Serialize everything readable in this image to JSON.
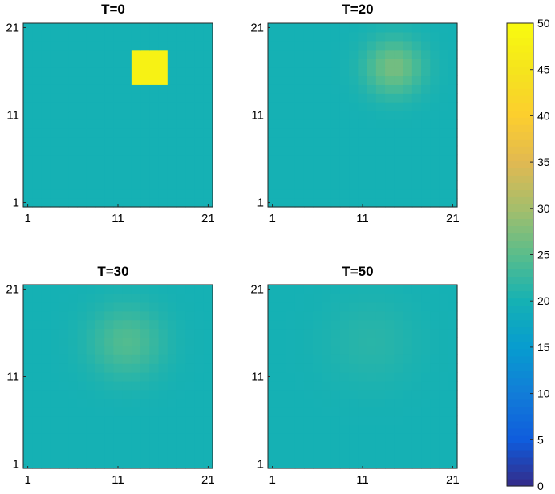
{
  "chart_data": [
    {
      "type": "heatmap",
      "title": "T=0",
      "x_ticks": [
        "1",
        "11",
        "21"
      ],
      "y_ticks": [
        "1",
        "11",
        "21"
      ],
      "xlim": [
        1,
        21
      ],
      "ylim": [
        1,
        21
      ],
      "background_value": 20,
      "hotspot": {
        "x_range": [
          13,
          16
        ],
        "y_range": [
          15,
          18
        ],
        "peak_value": 48,
        "profile": "flat"
      }
    },
    {
      "type": "heatmap",
      "title": "T=20",
      "x_ticks": [
        "1",
        "11",
        "21"
      ],
      "y_ticks": [
        "1",
        "11",
        "21"
      ],
      "xlim": [
        1,
        21
      ],
      "ylim": [
        1,
        21
      ],
      "background_value": 20,
      "hotspot": {
        "center": [
          14.5,
          16.5
        ],
        "peak_value": 27,
        "sigma": 2.2,
        "profile": "gaussian"
      }
    },
    {
      "type": "heatmap",
      "title": "T=30",
      "x_ticks": [
        "1",
        "11",
        "21"
      ],
      "y_ticks": [
        "1",
        "11",
        "21"
      ],
      "xlim": [
        1,
        21
      ],
      "ylim": [
        1,
        21
      ],
      "background_value": 20,
      "hotspot": {
        "center": [
          12,
          15
        ],
        "peak_value": 24.5,
        "sigma": 2.8,
        "profile": "gaussian"
      }
    },
    {
      "type": "heatmap",
      "title": "T=50",
      "x_ticks": [
        "1",
        "11",
        "21"
      ],
      "y_ticks": [
        "1",
        "11",
        "21"
      ],
      "xlim": [
        1,
        21
      ],
      "ylim": [
        1,
        21
      ],
      "background_value": 20,
      "hotspot": {
        "center": [
          12,
          15
        ],
        "peak_value": 21.5,
        "sigma": 3.5,
        "profile": "gaussian"
      }
    }
  ],
  "colorbar": {
    "min": 0,
    "max": 50,
    "ticks": [
      "0",
      "5",
      "10",
      "15",
      "20",
      "25",
      "30",
      "35",
      "40",
      "45",
      "50"
    ],
    "colormap": "parula"
  },
  "colors": {
    "background_cell": "#1aaede",
    "hotspot_peak": "#fcc932"
  }
}
